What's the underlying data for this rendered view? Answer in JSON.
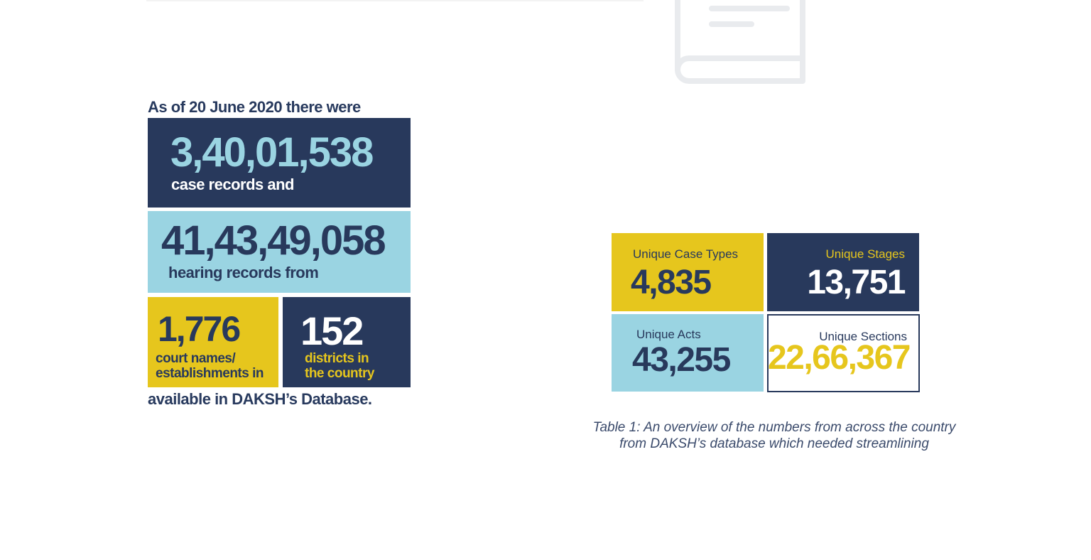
{
  "intro_text": "As of 20 June 2020 there were",
  "stats": {
    "case_records": {
      "value": "3,40,01,538",
      "label": "case records and"
    },
    "hearing_records": {
      "value": "41,43,49,058",
      "label": "hearing records  from"
    },
    "court_names": {
      "value": "1,776",
      "label_line1": "court names/",
      "label_line2": "establishments in"
    },
    "districts": {
      "value": "152",
      "label_line1": "districts in",
      "label_line2": "the country"
    }
  },
  "outro_text": "available in DAKSH’s Database.",
  "table": {
    "case_types": {
      "label": "Unique Case Types",
      "value": "4,835"
    },
    "stages": {
      "label": "Unique Stages",
      "value": "13,751"
    },
    "acts": {
      "label": "Unique Acts",
      "value": "43,255"
    },
    "sections": {
      "label": "Unique Sections",
      "value": "22,66,367"
    }
  },
  "caption": {
    "line1": "Table 1:  An overview of the numbers from across the country",
    "line2": "from DAKSH’s database which needed streamlining"
  },
  "colors": {
    "navy": "#28395c",
    "light_blue": "#9ad4e2",
    "yellow": "#e6c61d"
  },
  "icons": {
    "header_icon": "book-icon"
  }
}
